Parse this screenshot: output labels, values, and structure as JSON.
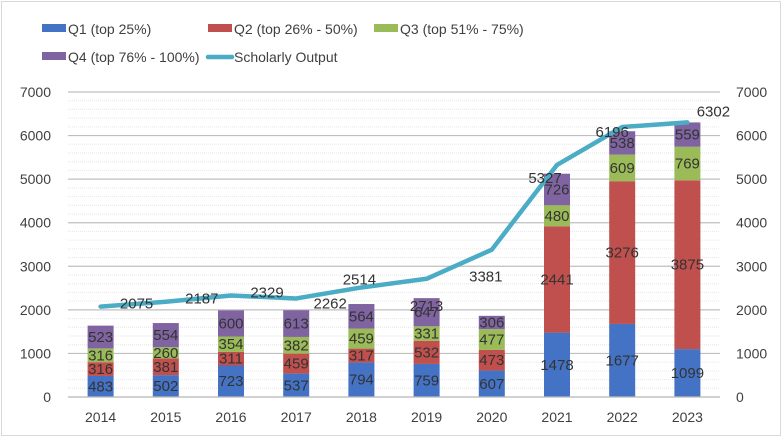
{
  "chart_data": {
    "type": "bar",
    "stacked": true,
    "title": "",
    "xlabel": "",
    "ylabel": "",
    "categories": [
      "2014",
      "2015",
      "2016",
      "2017",
      "2018",
      "2019",
      "2020",
      "2021",
      "2022",
      "2023"
    ],
    "series": [
      {
        "name": "Q1 (top 25%)",
        "type": "bar",
        "color": "#4472c4",
        "values": [
          483,
          502,
          723,
          537,
          794,
          759,
          607,
          1478,
          1677,
          1099
        ]
      },
      {
        "name": "Q2 (top 26% - 50%)",
        "type": "bar",
        "color": "#c0504d",
        "values": [
          316,
          381,
          311,
          459,
          317,
          532,
          473,
          2441,
          3276,
          3875
        ]
      },
      {
        "name": "Q3 (top 51% - 75%)",
        "type": "bar",
        "color": "#9bbb59",
        "values": [
          316,
          260,
          354,
          382,
          459,
          331,
          477,
          480,
          609,
          769
        ]
      },
      {
        "name": "Q4 (top 76% - 100%)",
        "type": "bar",
        "color": "#8064a2",
        "values": [
          523,
          554,
          600,
          613,
          564,
          647,
          306,
          726,
          538,
          559
        ]
      },
      {
        "name": "Scholarly Output",
        "type": "line",
        "color": "#4bacc6",
        "values": [
          2075,
          2187,
          2329,
          2262,
          2514,
          2713,
          3381,
          5327,
          6196,
          6302
        ]
      }
    ],
    "ylim": [
      0,
      7000
    ],
    "y_ticks": [
      "0",
      "1000",
      "2000",
      "3000",
      "4000",
      "5000",
      "6000",
      "7000"
    ],
    "secondary_ylim": [
      0,
      7000
    ],
    "secondary_y_ticks": [
      "0",
      "1000",
      "2000",
      "3000",
      "4000",
      "5000",
      "6000",
      "7000"
    ],
    "grid": true,
    "minor_grid": true,
    "legend_position": "top",
    "data_labels": true
  }
}
